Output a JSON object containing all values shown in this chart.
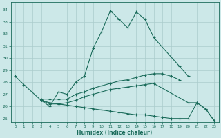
{
  "xlabel": "Humidex (Indice chaleur)",
  "bg_color": "#cce8e8",
  "grid_color": "#aacccc",
  "line_color": "#1a6b5a",
  "xlim": [
    -0.5,
    23.5
  ],
  "ylim": [
    24.7,
    34.6
  ],
  "yticks": [
    25,
    26,
    27,
    28,
    29,
    30,
    31,
    32,
    33,
    34
  ],
  "xticks": [
    0,
    1,
    2,
    3,
    4,
    5,
    6,
    7,
    8,
    9,
    10,
    11,
    12,
    13,
    14,
    15,
    16,
    17,
    18,
    19,
    20,
    21,
    22,
    23
  ],
  "series": [
    {
      "x": [
        0,
        1,
        3,
        4,
        5,
        6,
        7,
        8,
        9,
        10,
        11,
        12,
        13,
        14,
        15,
        16,
        19,
        20
      ],
      "y": [
        28.5,
        27.8,
        26.5,
        26.0,
        27.2,
        27.0,
        28.0,
        28.5,
        30.8,
        32.2,
        33.9,
        33.2,
        32.5,
        33.8,
        33.2,
        31.7,
        29.3,
        28.5
      ]
    },
    {
      "x": [
        3,
        4,
        5,
        6,
        7,
        8,
        9,
        10,
        11,
        12,
        13,
        14,
        15,
        16,
        17,
        18,
        19
      ],
      "y": [
        26.6,
        26.6,
        26.6,
        26.6,
        27.0,
        27.2,
        27.5,
        27.7,
        27.9,
        28.1,
        28.2,
        28.4,
        28.6,
        28.7,
        28.7,
        28.5,
        28.2
      ]
    },
    {
      "x": [
        3,
        4,
        5,
        6,
        7,
        8,
        9,
        10,
        11,
        12,
        13,
        14,
        15,
        16,
        17,
        18,
        19,
        20,
        21,
        22,
        23
      ],
      "y": [
        26.5,
        26.3,
        26.2,
        26.1,
        26.0,
        25.9,
        25.8,
        25.7,
        25.6,
        25.5,
        25.4,
        25.3,
        25.3,
        25.2,
        25.1,
        25.0,
        25.0,
        25.0,
        26.3,
        25.8,
        24.8
      ]
    },
    {
      "x": [
        3,
        4,
        5,
        6,
        7,
        8,
        9,
        10,
        11,
        12,
        13,
        14,
        15,
        16,
        20,
        21,
        22,
        23
      ],
      "y": [
        26.5,
        26.2,
        26.2,
        26.3,
        26.5,
        26.8,
        27.0,
        27.2,
        27.4,
        27.5,
        27.6,
        27.7,
        27.8,
        27.9,
        26.3,
        26.3,
        25.8,
        24.8
      ]
    }
  ]
}
